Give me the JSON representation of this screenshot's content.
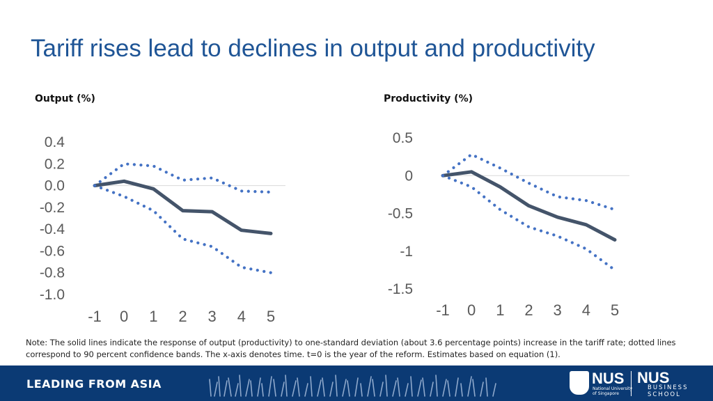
{
  "slide": {
    "title": "Tariff rises lead to declines in output and productivity",
    "note": "Note: The solid lines indicate the response of output (productivity) to one-standard deviation (about 3.6 percentage points) increase in the tariff rate; dotted lines correspond to 90 percent confidence bands. The x-axis denotes time. t=0 is the year of the reform. Estimates based on equation (1).",
    "footer": {
      "tagline": "LEADING FROM ASIA",
      "logo_nus": "NUS",
      "logo_nus_sub": "National University of Singapore",
      "logo_school": "NUS",
      "logo_school_sub1": "BUSINESS",
      "logo_school_sub2": "SCHOOL"
    }
  },
  "colors": {
    "title": "#1f5596",
    "solid_line": "#44546a",
    "dotted_line": "#4472c4",
    "footer_bg": "#0b3a74"
  },
  "chart_data": [
    {
      "type": "line",
      "title": "Output (%)",
      "x": [
        -1,
        0,
        1,
        2,
        3,
        4,
        5
      ],
      "ylim": [
        -1.0,
        0.4
      ],
      "yticks": [
        "0.4",
        "0.2",
        "0.0",
        "-0.2",
        "-0.4",
        "-0.6",
        "-0.8",
        "-1.0"
      ],
      "ytick_values": [
        0.4,
        0.2,
        0.0,
        -0.2,
        -0.4,
        -0.6,
        -0.8,
        -1.0
      ],
      "xticks": [
        "-1",
        "0",
        "1",
        "2",
        "3",
        "4",
        "5"
      ],
      "zero_line": true,
      "series": [
        {
          "role": "estimate",
          "style": "solid",
          "values": [
            0.0,
            0.04,
            -0.03,
            -0.23,
            -0.24,
            -0.41,
            -0.44
          ]
        },
        {
          "role": "upper",
          "style": "dotted",
          "values": [
            0.0,
            0.2,
            0.18,
            0.05,
            0.07,
            -0.05,
            -0.06
          ]
        },
        {
          "role": "lower",
          "style": "dotted",
          "values": [
            0.0,
            -0.1,
            -0.23,
            -0.49,
            -0.56,
            -0.75,
            -0.8
          ]
        }
      ]
    },
    {
      "type": "line",
      "title": "Productivity (%)",
      "x": [
        -1,
        0,
        1,
        2,
        3,
        4,
        5
      ],
      "ylim": [
        -1.5,
        0.5
      ],
      "yticks": [
        "0.5",
        "0",
        "-0.5",
        "-1",
        "-1.5"
      ],
      "ytick_values": [
        0.5,
        0,
        -0.5,
        -1,
        -1.5
      ],
      "xticks": [
        "-1",
        "0",
        "1",
        "2",
        "3",
        "4",
        "5"
      ],
      "zero_line": true,
      "series": [
        {
          "role": "estimate",
          "style": "solid",
          "values": [
            0.0,
            0.05,
            -0.15,
            -0.4,
            -0.55,
            -0.65,
            -0.85
          ]
        },
        {
          "role": "upper",
          "style": "dotted",
          "values": [
            0.0,
            0.28,
            0.1,
            -0.1,
            -0.28,
            -0.33,
            -0.45
          ]
        },
        {
          "role": "lower",
          "style": "dotted",
          "values": [
            0.0,
            -0.15,
            -0.45,
            -0.68,
            -0.8,
            -0.97,
            -1.25
          ]
        }
      ]
    }
  ]
}
